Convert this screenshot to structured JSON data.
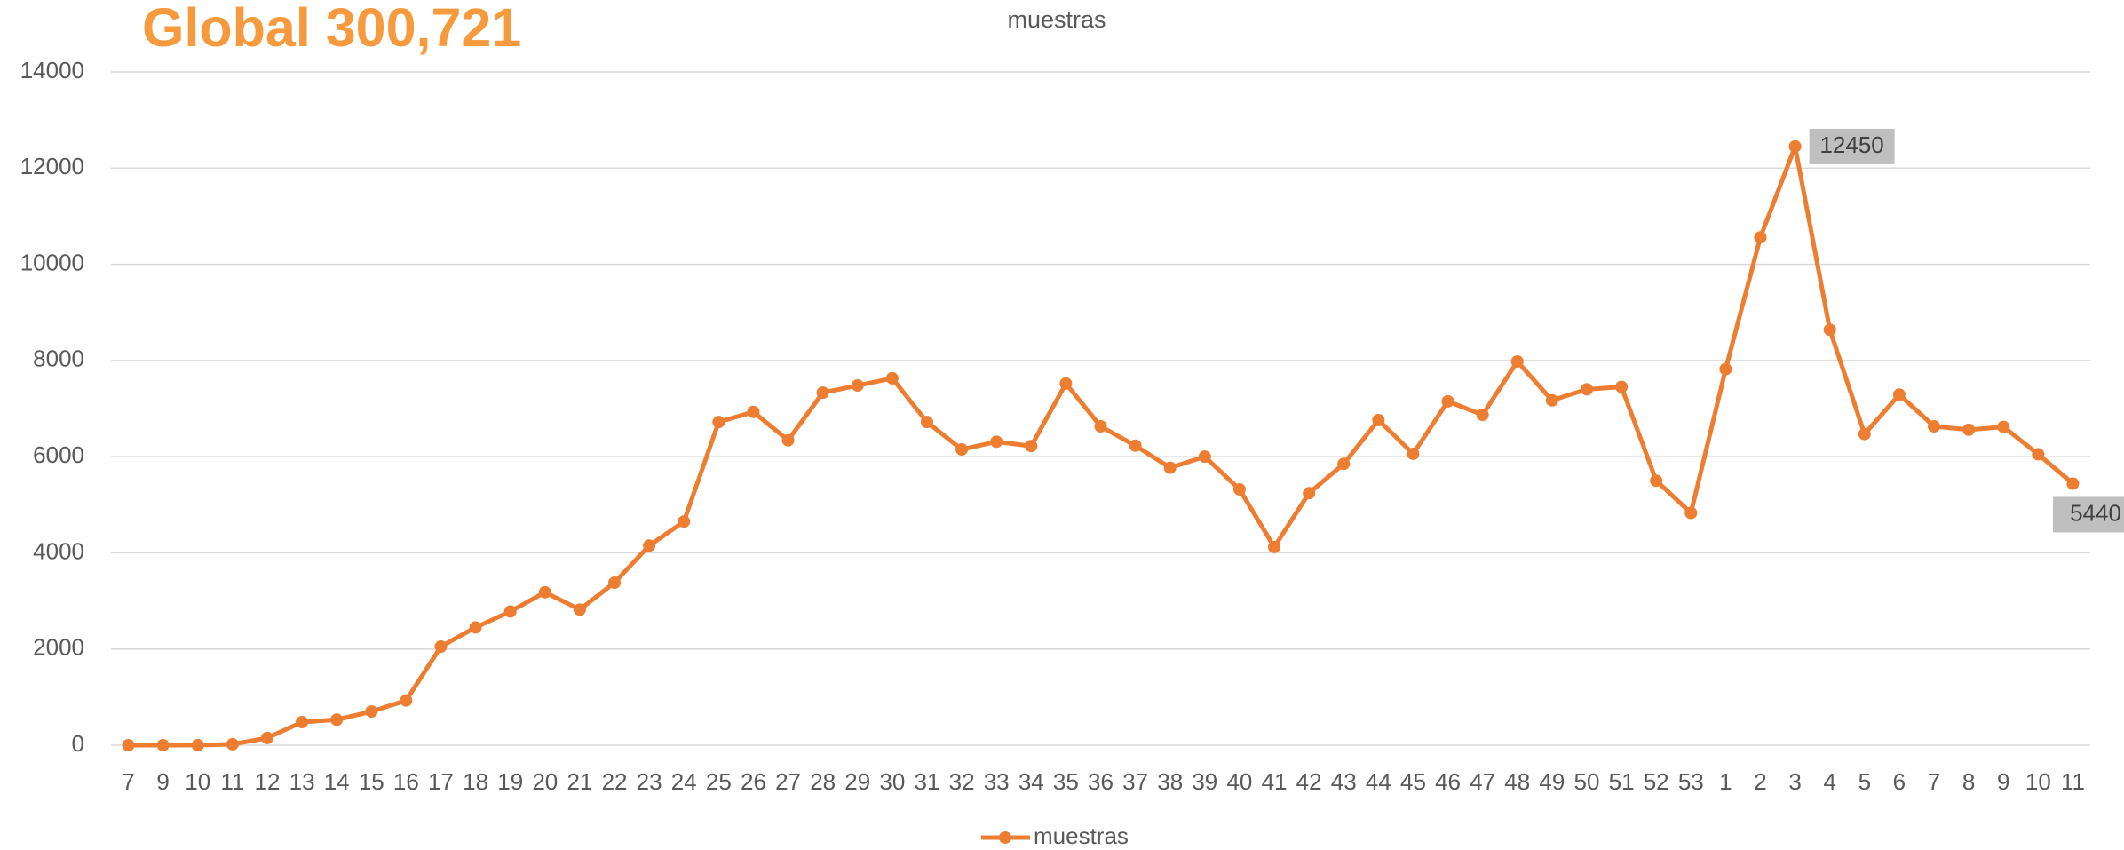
{
  "chart_data": {
    "type": "line",
    "title": "muestras",
    "annotation": "Global 300,721",
    "categories": [
      "7",
      "9",
      "10",
      "11",
      "12",
      "13",
      "14",
      "15",
      "16",
      "17",
      "18",
      "19",
      "20",
      "21",
      "22",
      "23",
      "24",
      "25",
      "26",
      "27",
      "28",
      "29",
      "30",
      "31",
      "32",
      "33",
      "34",
      "35",
      "36",
      "37",
      "38",
      "39",
      "40",
      "41",
      "42",
      "43",
      "44",
      "45",
      "46",
      "47",
      "48",
      "49",
      "50",
      "51",
      "52",
      "53",
      "1",
      "2",
      "3",
      "4",
      "5",
      "6",
      "7",
      "8",
      "9",
      "10",
      "11"
    ],
    "series": [
      {
        "name": "muestras",
        "color": "#ed7d31",
        "values": [
          0,
          0,
          0,
          20,
          150,
          480,
          530,
          700,
          930,
          2050,
          2450,
          2780,
          3180,
          2820,
          3380,
          4150,
          4650,
          6720,
          6930,
          6340,
          7330,
          7480,
          7630,
          6720,
          6150,
          6310,
          6220,
          7520,
          6630,
          6230,
          5770,
          6000,
          5320,
          4120,
          5240,
          5850,
          6760,
          6060,
          7150,
          6870,
          7980,
          7170,
          7400,
          7450,
          5500,
          4830,
          7820,
          10560,
          12450,
          8640,
          6470,
          7290,
          6630,
          6560,
          6620,
          6050,
          5440
        ],
        "data_labels_at": [
          48,
          56
        ]
      }
    ],
    "ylim": [
      0,
      14000
    ],
    "yticks": [
      0,
      2000,
      4000,
      6000,
      8000,
      10000,
      12000,
      14000
    ],
    "grid": true,
    "legend": "bottom"
  }
}
